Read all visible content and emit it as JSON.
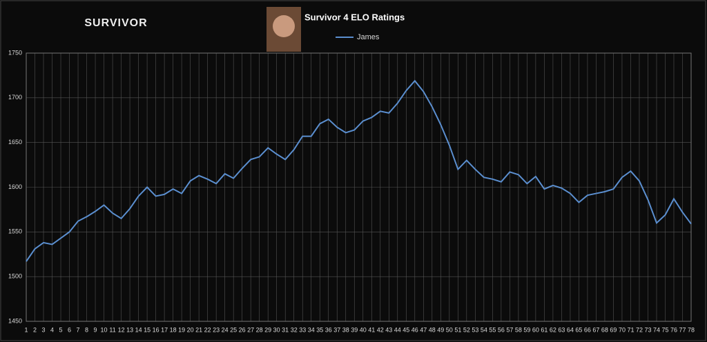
{
  "logo": "SURVIVOR",
  "chart_data": {
    "type": "line",
    "title": "Survivor 4 ELO Ratings",
    "categories": [
      1,
      2,
      3,
      4,
      5,
      6,
      7,
      8,
      9,
      10,
      11,
      12,
      13,
      14,
      15,
      16,
      17,
      18,
      19,
      20,
      21,
      22,
      23,
      24,
      25,
      26,
      27,
      28,
      29,
      30,
      31,
      32,
      33,
      34,
      35,
      36,
      37,
      38,
      39,
      40,
      41,
      42,
      43,
      44,
      45,
      46,
      47,
      48,
      49,
      50,
      51,
      52,
      53,
      54,
      55,
      56,
      57,
      58,
      59,
      60,
      61,
      62,
      63,
      64,
      65,
      66,
      67,
      68,
      69,
      70,
      71,
      72,
      73,
      74,
      75,
      76,
      77,
      78
    ],
    "series": [
      {
        "name": "James",
        "color": "#5b8fd0",
        "values": [
          1517,
          1531,
          1538,
          1536,
          1543,
          1550,
          1562,
          1567,
          1573,
          1580,
          1571,
          1565,
          1576,
          1590,
          1600,
          1590,
          1592,
          1598,
          1593,
          1607,
          1613,
          1609,
          1604,
          1615,
          1610,
          1621,
          1631,
          1634,
          1644,
          1637,
          1631,
          1642,
          1657,
          1657,
          1671,
          1676,
          1667,
          1661,
          1664,
          1674,
          1678,
          1685,
          1683,
          1694,
          1708,
          1719,
          1707,
          1690,
          1670,
          1647,
          1620,
          1630,
          1620,
          1611,
          1609,
          1606,
          1617,
          1614,
          1604,
          1612,
          1598,
          1602,
          1599,
          1593,
          1583,
          1591,
          1593,
          1595,
          1598,
          1611,
          1618,
          1607,
          1586,
          1560,
          1569,
          1587,
          1572,
          1559
        ]
      }
    ],
    "ylim": [
      1450,
      1750
    ],
    "yticks": [
      1450,
      1500,
      1550,
      1600,
      1650,
      1700,
      1750
    ],
    "grid": true
  }
}
